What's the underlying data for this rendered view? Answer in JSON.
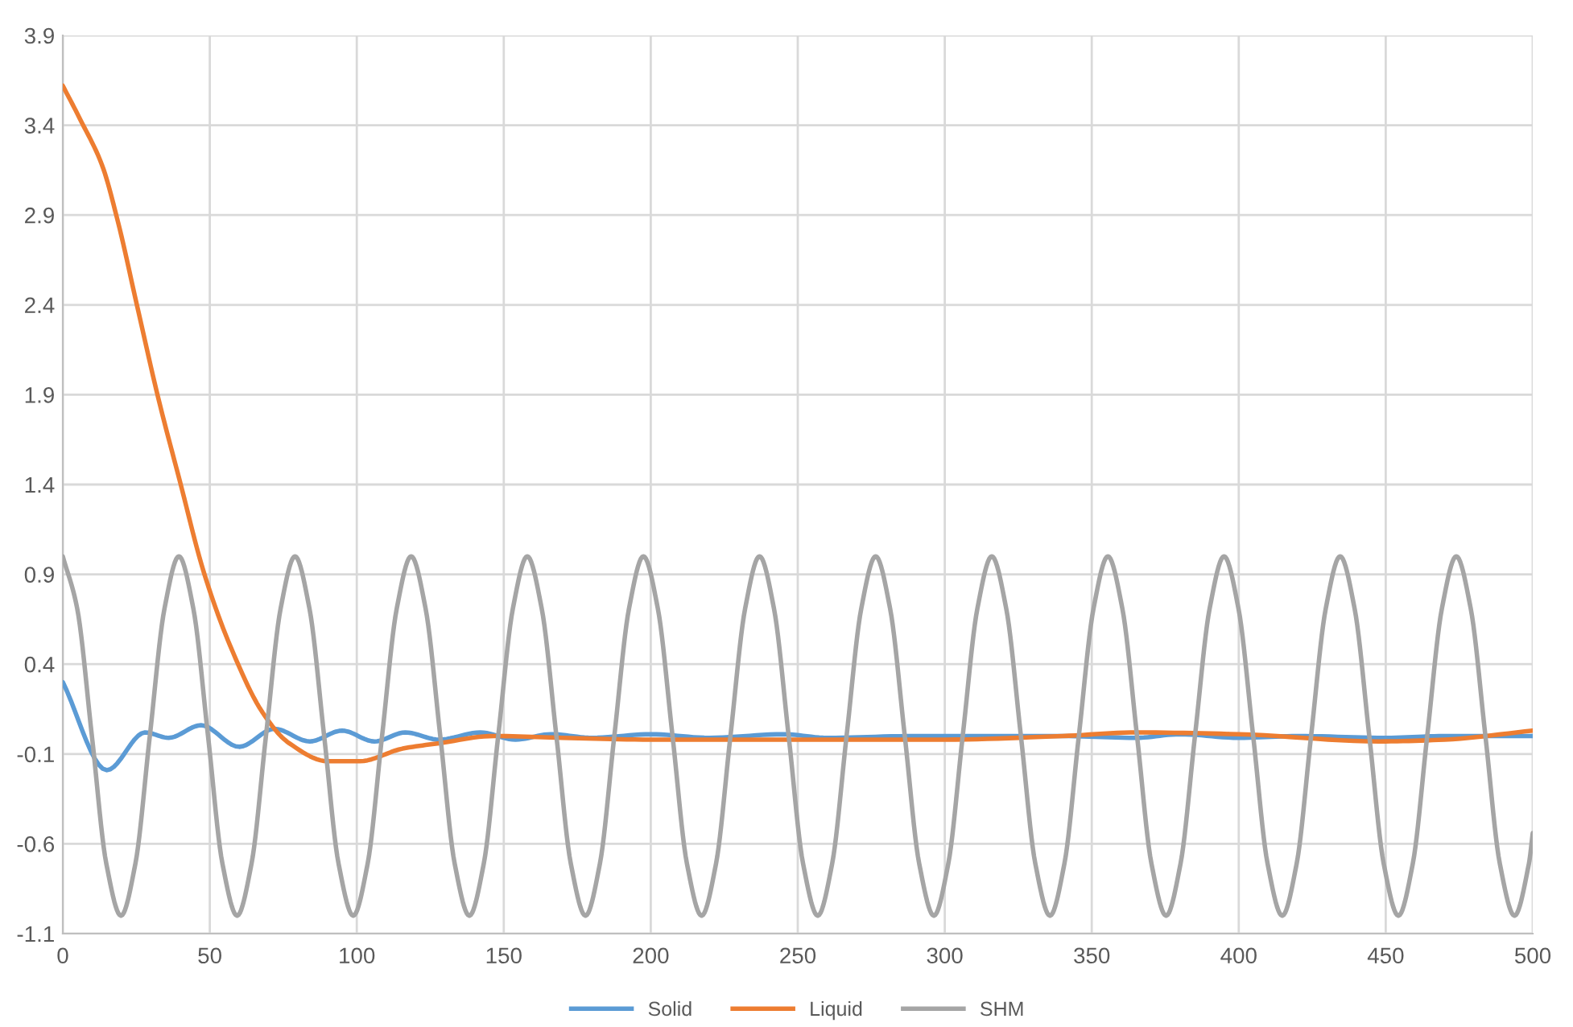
{
  "chart_data": {
    "type": "line",
    "xlim": [
      0,
      500
    ],
    "ylim": [
      -1.1,
      3.9
    ],
    "xticks": [
      0,
      50,
      100,
      150,
      200,
      250,
      300,
      350,
      400,
      450,
      500
    ],
    "yticks": [
      -1.1,
      -0.6,
      -0.1,
      0.4,
      0.9,
      1.4,
      1.9,
      2.4,
      2.9,
      3.4,
      3.9
    ],
    "grid": true,
    "legend": "bottom",
    "marker": "none",
    "line_style": "solid",
    "series": [
      {
        "name": "Solid",
        "color": "#5b9bd5",
        "x": [
          0,
          15,
          28,
          36,
          47,
          60,
          72,
          84,
          95,
          106,
          116.5,
          128,
          142,
          154,
          166,
          180,
          200,
          220,
          245,
          260,
          290,
          320,
          340,
          365,
          380,
          400,
          420,
          450,
          470,
          500
        ],
        "values": [
          0.3,
          -0.19,
          0.02,
          -0.01,
          0.06,
          -0.06,
          0.04,
          -0.03,
          0.03,
          -0.03,
          0.02,
          -0.02,
          0.02,
          -0.02,
          0.01,
          -0.01,
          0.01,
          -0.01,
          0.01,
          -0.01,
          0.0,
          0.0,
          0.0,
          -0.01,
          0.01,
          -0.01,
          0.0,
          -0.01,
          0.0,
          0.0
        ]
      },
      {
        "name": "Liquid",
        "color": "#ed7d31",
        "x": [
          0,
          6,
          13.3,
          18.8,
          25.2,
          32.5,
          39.8,
          48,
          57,
          68,
          77,
          90,
          101,
          115.6,
          128,
          146.6,
          170,
          200,
          250,
          300,
          340,
          365.6,
          400,
          447.8,
          470,
          500
        ],
        "values": [
          3.62,
          3.43,
          3.18,
          2.86,
          2.4,
          1.88,
          1.42,
          0.91,
          0.5,
          0.13,
          -0.04,
          -0.14,
          -0.14,
          -0.07,
          -0.04,
          0.0,
          -0.01,
          -0.02,
          -0.02,
          -0.02,
          0.0,
          0.02,
          0.01,
          -0.03,
          -0.02,
          0.03
        ]
      },
      {
        "name": "SHM",
        "color": "#a5a5a5",
        "x": [
          0,
          4.9,
          9.9,
          14.8,
          19.8,
          24.7,
          29.6,
          34.6,
          39.5,
          44.4,
          49.4,
          54.3,
          59.3,
          64.2,
          69.1,
          74.1,
          79,
          83.9,
          88.9,
          93.8,
          98.8,
          103.7,
          108.6,
          113.6,
          118.5,
          123.4,
          128.4,
          133.3,
          138.3,
          143.2,
          148.1,
          153.1,
          158,
          162.9,
          167.9,
          172.8,
          177.8,
          182.7,
          187.6,
          192.6,
          197.5,
          202.4,
          207.4,
          212.3,
          217.3,
          222.2,
          227.1,
          232.1,
          237,
          241.9,
          246.9,
          251.8,
          256.8,
          261.7,
          266.6,
          271.6,
          276.5,
          281.4,
          286.4,
          291.3,
          296.3,
          301.2,
          306.1,
          311.1,
          316,
          320.9,
          325.9,
          330.8,
          335.8,
          340.7,
          345.6,
          350.6,
          355.5,
          360.4,
          365.4,
          370.3,
          375.3,
          380.2,
          385.1,
          390.1,
          395,
          399.9,
          404.9,
          409.8,
          414.8,
          419.7,
          424.6,
          429.6,
          434.5,
          439.4,
          444.4,
          449.3,
          454.3,
          459.2,
          464.1,
          469.1,
          474,
          478.9,
          483.9,
          488.8,
          493.8,
          498.7,
          500
        ],
        "values": [
          1,
          0.71,
          0,
          -0.71,
          -1,
          -0.71,
          0,
          0.71,
          1,
          0.71,
          0,
          -0.71,
          -1,
          -0.71,
          0,
          0.71,
          1,
          0.71,
          0,
          -0.71,
          -1,
          -0.71,
          0,
          0.71,
          1,
          0.71,
          0,
          -0.71,
          -1,
          -0.71,
          0,
          0.71,
          1,
          0.71,
          0,
          -0.71,
          -1,
          -0.71,
          0,
          0.71,
          1,
          0.71,
          0,
          -0.71,
          -1,
          -0.71,
          0,
          0.71,
          1,
          0.71,
          0,
          -0.71,
          -1,
          -0.71,
          0,
          0.71,
          1,
          0.71,
          0,
          -0.71,
          -1,
          -0.71,
          0,
          0.71,
          1,
          0.71,
          0,
          -0.71,
          -1,
          -0.71,
          0,
          0.71,
          1,
          0.71,
          0,
          -0.71,
          -1,
          -0.71,
          0,
          0.71,
          1,
          0.71,
          0,
          -0.71,
          -1,
          -0.71,
          0,
          0.71,
          1,
          0.71,
          0,
          -0.71,
          -1,
          -0.71,
          0,
          0.71,
          1,
          0.71,
          0,
          -0.71,
          -1,
          -0.71,
          -0.54
        ]
      }
    ]
  }
}
